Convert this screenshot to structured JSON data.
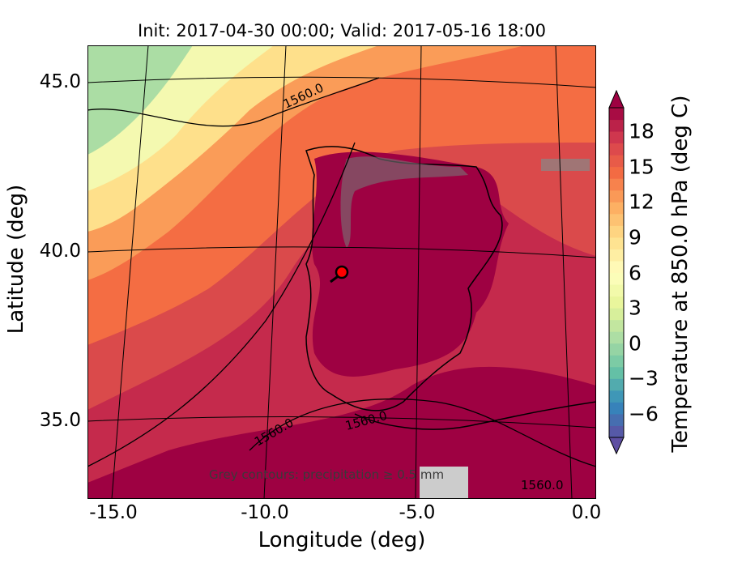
{
  "title": "Init: 2017-04-30 00:00; Valid: 2017-05-16 18:00",
  "xaxis": {
    "label": "Longitude (deg)",
    "ticks": [
      "-15.0",
      "-10.0",
      "-5.0",
      "0.0"
    ]
  },
  "yaxis": {
    "label": "Latitude (deg)",
    "ticks": [
      "45.0",
      "40.0",
      "35.0"
    ]
  },
  "colorbar": {
    "label": "Temperature at 850.0 hPa (deg C)",
    "ticks": [
      "18",
      "15",
      "12",
      "9",
      "6",
      "3",
      "0",
      "−3",
      "−6"
    ],
    "range": [
      -8,
      20
    ],
    "extend": "both"
  },
  "contour_labels": [
    "1560.0",
    "1560.0",
    "1560.0",
    "1560.0"
  ],
  "annotation": "Grey contours: precipitation ≥ 0.5 mm",
  "marker": {
    "lon": -7.5,
    "lat": 39.4,
    "color": "#ff0000"
  },
  "colors": {
    "cold": "#5e4fa2",
    "mild": "#ffffbf",
    "warm": "#f46d43",
    "hot": "#9e0142"
  }
}
